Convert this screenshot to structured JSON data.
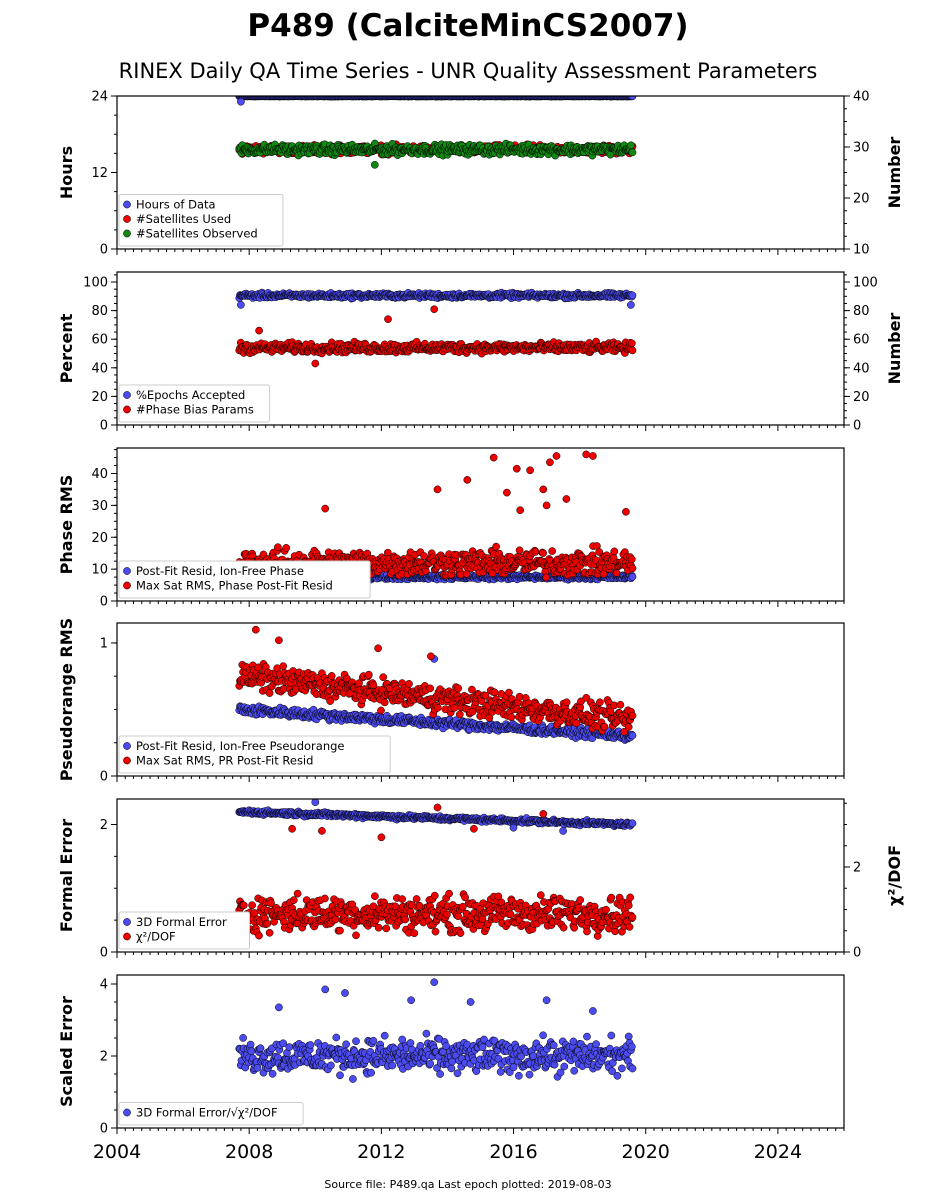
{
  "title": "P489 (CalciteMinCS2007)",
  "subtitle": "RINEX Daily QA Time Series - UNR Quality Assessment Parameters",
  "footer": "Source file: P489.qa Last epoch plotted: 2019-08-03",
  "colors": {
    "blue": "#4b4bf0",
    "red": "#ee0000",
    "green": "#118811",
    "navy": "#0a0a3c"
  },
  "chart_data": [
    {
      "type": "scatter",
      "ylabel": "Hours",
      "ylabel_right": "Number",
      "xlim": [
        2004,
        2026
      ],
      "ylim": [
        0,
        24
      ],
      "ylim_right": [
        10,
        40
      ],
      "yticks": [
        0,
        12,
        24
      ],
      "yticks_right": [
        10,
        20,
        30,
        40
      ],
      "legend": "lower-left",
      "series": [
        {
          "name": "Hours of Data",
          "color": "#4b4bf0",
          "x_range": [
            2007.7,
            2019.6
          ],
          "y_center": 23.95,
          "y_spread": 0.05,
          "axis": "left",
          "outliers": [
            [
              2007.75,
              23.1
            ]
          ]
        },
        {
          "name": "#Satellites Used",
          "color": "#ee0000",
          "x_range": [
            2007.7,
            2019.6
          ],
          "y_center": 29.5,
          "y_spread": 1.2,
          "axis": "right",
          "outliers": [
            [
              2009.7,
              30.0
            ]
          ]
        },
        {
          "name": "#Satellites Observed",
          "color": "#118811",
          "x_range": [
            2007.7,
            2019.6
          ],
          "y_center": 29.5,
          "y_spread": 1.4,
          "axis": "right",
          "outliers": [
            [
              2011.8,
              26.5
            ]
          ]
        }
      ]
    },
    {
      "type": "scatter",
      "ylabel": "Percent",
      "ylabel_right": "Number",
      "xlim": [
        2004,
        2026
      ],
      "ylim": [
        0,
        107
      ],
      "yticks": [
        0,
        20,
        40,
        60,
        80,
        100
      ],
      "yticks_right": [
        0,
        20,
        40,
        60,
        80,
        100
      ],
      "legend": "lower-left",
      "series": [
        {
          "name": "%Epochs Accepted",
          "color": "#4b4bf0",
          "x_range": [
            2007.7,
            2019.6
          ],
          "y_center": 90.5,
          "y_spread": 2.5,
          "axis": "left",
          "outliers": [
            [
              2007.75,
              84
            ],
            [
              2019.55,
              84
            ]
          ]
        },
        {
          "name": "#Phase Bias Params",
          "color": "#ee0000",
          "x_range": [
            2007.7,
            2019.6
          ],
          "y_center": 54,
          "y_spread": 5,
          "axis": "right",
          "outliers": [
            [
              2012.2,
              74
            ],
            [
              2013.6,
              81
            ],
            [
              2008.3,
              66
            ],
            [
              2010.0,
              43
            ]
          ]
        }
      ]
    },
    {
      "type": "scatter",
      "ylabel": "Phase RMS",
      "xlim": [
        2004,
        2026
      ],
      "ylim": [
        0,
        48
      ],
      "yticks": [
        0,
        10,
        20,
        30,
        40
      ],
      "legend": "lower-left",
      "series": [
        {
          "name": "Post-Fit Resid, Ion-Free Phase",
          "color": "#4b4bf0",
          "x_range": [
            2007.7,
            2019.6
          ],
          "y_center": 7.5,
          "y_spread": 1,
          "axis": "left",
          "outliers": []
        },
        {
          "name": "Max Sat RMS, Phase Post-Fit Resid",
          "color": "#ee0000",
          "x_range": [
            2007.7,
            2019.6
          ],
          "y_center": 12,
          "y_spread": 6,
          "axis": "left",
          "outliers": [
            [
              2015.4,
              45
            ],
            [
              2016.1,
              41.5
            ],
            [
              2016.5,
              41
            ],
            [
              2017.1,
              43.5
            ],
            [
              2017.3,
              45.5
            ],
            [
              2018.2,
              46
            ],
            [
              2018.4,
              45.5
            ],
            [
              2014.6,
              38
            ],
            [
              2013.7,
              35
            ],
            [
              2016.9,
              35
            ],
            [
              2017.6,
              32
            ],
            [
              2010.3,
              29
            ],
            [
              2019.4,
              28
            ],
            [
              2016.2,
              28.5
            ],
            [
              2015.8,
              34
            ],
            [
              2017.0,
              30
            ]
          ]
        }
      ]
    },
    {
      "type": "scatter",
      "ylabel": "Pseudorange RMS",
      "xlim": [
        2004,
        2026
      ],
      "ylim": [
        0,
        1.15
      ],
      "yticks": [
        0,
        1
      ],
      "legend": "lower-left",
      "series": [
        {
          "name": "Post-Fit Resid, Ion-Free Pseudorange",
          "color": "#4b4bf0",
          "x_range": [
            2007.7,
            2019.6
          ],
          "y_start": 0.5,
          "y_end": 0.3,
          "y_spread": 0.05,
          "axis": "left",
          "outliers": [
            [
              2013.6,
              0.88
            ]
          ]
        },
        {
          "name": "Max Sat RMS, PR Post-Fit Resid",
          "color": "#ee0000",
          "x_range": [
            2007.7,
            2019.6
          ],
          "y_start": 0.75,
          "y_end": 0.42,
          "y_spread": 0.15,
          "axis": "left",
          "outliers": [
            [
              2008.2,
              1.1
            ],
            [
              2008.9,
              1.02
            ],
            [
              2011.9,
              0.96
            ],
            [
              2013.5,
              0.9
            ]
          ]
        }
      ]
    },
    {
      "type": "scatter",
      "ylabel": "Formal Error",
      "ylabel_right": "χ²/DOF",
      "xlim": [
        2004,
        2026
      ],
      "ylim": [
        0,
        2.4
      ],
      "yticks": [
        0,
        2
      ],
      "ylim_right": [
        0,
        3.6
      ],
      "yticks_right": [
        0,
        2
      ],
      "legend": "lower-left",
      "series": [
        {
          "name": "3D Formal Error",
          "color": "#4b4bf0",
          "x_range": [
            2007.7,
            2019.6
          ],
          "y_start": 2.2,
          "y_end": 2.0,
          "y_spread": 0.05,
          "axis": "left",
          "outliers": [
            [
              2010.0,
              2.35
            ],
            [
              2016.0,
              1.95
            ],
            [
              2017.5,
              1.9
            ]
          ]
        },
        {
          "name": "χ²/DOF",
          "color": "#ee0000",
          "x_range": [
            2007.7,
            2019.6
          ],
          "y_center": 0.9,
          "y_spread": 0.6,
          "axis": "right",
          "outliers": [
            [
              2013.7,
              3.4
            ],
            [
              2010.2,
              2.85
            ],
            [
              2016.9,
              3.25
            ],
            [
              2009.3,
              2.9
            ],
            [
              2012.0,
              2.7
            ],
            [
              2014.8,
              2.9
            ]
          ]
        }
      ]
    },
    {
      "type": "scatter",
      "ylabel": "Scaled Error",
      "xlim": [
        2004,
        2026
      ],
      "ylim": [
        0,
        4.25
      ],
      "yticks": [
        0,
        2,
        4
      ],
      "xticks": [
        2004,
        2008,
        2012,
        2016,
        2020,
        2024
      ],
      "legend": "lower-left",
      "series": [
        {
          "name": "3D Formal Error/√χ²/DOF",
          "color": "#4b4bf0",
          "x_range": [
            2007.7,
            2019.6
          ],
          "y_center": 2.0,
          "y_spread": 0.7,
          "axis": "left",
          "outliers": [
            [
              2013.6,
              4.05
            ],
            [
              2010.3,
              3.85
            ],
            [
              2010.9,
              3.75
            ],
            [
              2008.9,
              3.35
            ],
            [
              2012.9,
              3.55
            ],
            [
              2017.0,
              3.55
            ],
            [
              2014.7,
              3.5
            ],
            [
              2018.4,
              3.25
            ]
          ]
        }
      ]
    }
  ]
}
